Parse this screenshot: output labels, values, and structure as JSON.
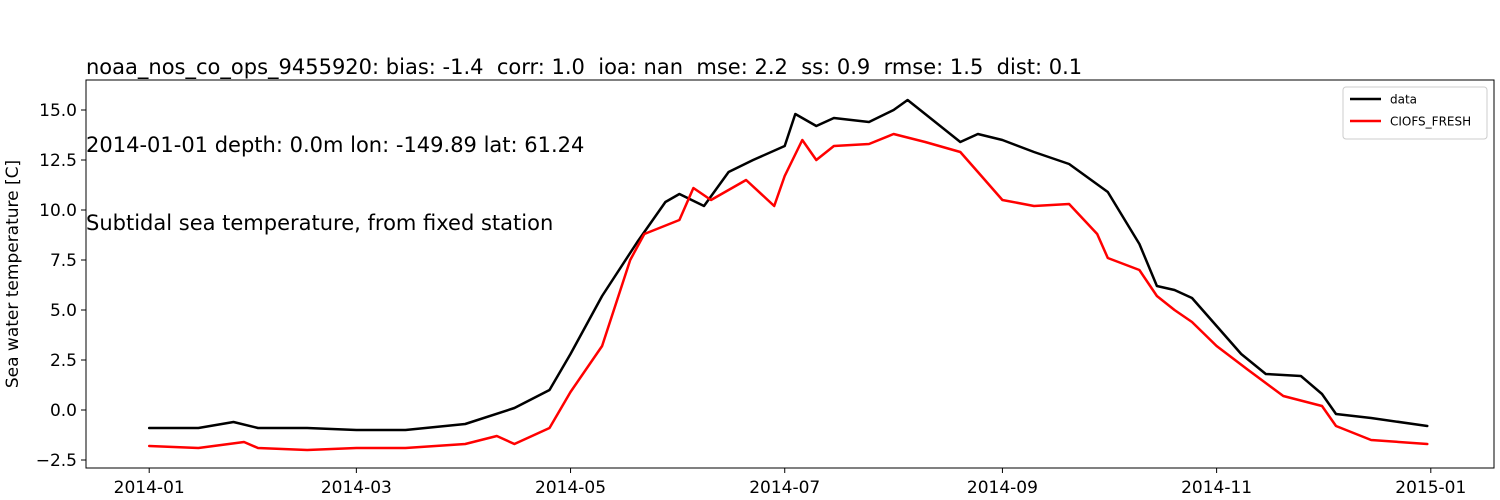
{
  "chart_data": {
    "type": "line",
    "title_lines": [
      "noaa_nos_co_ops_9455920: bias: -1.4  corr: 1.0  ioa: nan  mse: 2.2  ss: 0.9  rmse: 1.5  dist: 0.1",
      "2014-01-01 depth: 0.0m lon: -149.89 lat: 61.24",
      "Subtidal sea temperature, from fixed station"
    ],
    "xlabel": "",
    "ylabel": "Sea water temperature [C]",
    "xlim": [
      "2013-12-14",
      "2015-01-19"
    ],
    "ylim": [
      -2.9,
      16.5
    ],
    "x_ticks": [
      "2014-01",
      "2014-03",
      "2014-05",
      "2014-07",
      "2014-09",
      "2014-11",
      "2015-01"
    ],
    "y_ticks": [
      "−2.5",
      "0.0",
      "2.5",
      "5.0",
      "7.5",
      "10.0",
      "12.5",
      "15.0"
    ],
    "grid": false,
    "legend_position": "top-right",
    "series": [
      {
        "name": "data",
        "color": "#000000",
        "x": [
          "2014-01-01",
          "2014-01-15",
          "2014-01-25",
          "2014-02-01",
          "2014-02-15",
          "2014-03-01",
          "2014-03-15",
          "2014-04-01",
          "2014-04-15",
          "2014-04-25",
          "2014-05-01",
          "2014-05-10",
          "2014-05-20",
          "2014-05-28",
          "2014-06-01",
          "2014-06-08",
          "2014-06-15",
          "2014-06-22",
          "2014-07-01",
          "2014-07-04",
          "2014-07-10",
          "2014-07-15",
          "2014-07-25",
          "2014-08-01",
          "2014-08-05",
          "2014-08-10",
          "2014-08-20",
          "2014-08-25",
          "2014-09-01",
          "2014-09-10",
          "2014-09-20",
          "2014-10-01",
          "2014-10-10",
          "2014-10-15",
          "2014-10-20",
          "2014-10-25",
          "2014-11-01",
          "2014-11-08",
          "2014-11-15",
          "2014-11-25",
          "2014-12-01",
          "2014-12-05",
          "2014-12-15",
          "2014-12-31"
        ],
        "y": [
          -0.9,
          -0.9,
          -0.6,
          -0.9,
          -0.9,
          -1.0,
          -1.0,
          -0.7,
          0.1,
          1.0,
          2.8,
          5.7,
          8.4,
          10.4,
          10.8,
          10.2,
          11.9,
          12.5,
          13.2,
          14.8,
          14.2,
          14.6,
          14.4,
          15.0,
          15.5,
          14.8,
          13.4,
          13.8,
          13.5,
          12.9,
          12.3,
          10.9,
          8.3,
          6.2,
          6.0,
          5.6,
          4.2,
          2.8,
          1.8,
          1.7,
          0.8,
          -0.2,
          -0.4,
          -0.8
        ]
      },
      {
        "name": "CIOFS_FRESH",
        "color": "#ff0000",
        "x": [
          "2014-01-01",
          "2014-01-15",
          "2014-01-28",
          "2014-02-01",
          "2014-02-15",
          "2014-03-01",
          "2014-03-15",
          "2014-04-01",
          "2014-04-10",
          "2014-04-15",
          "2014-04-25",
          "2014-05-01",
          "2014-05-10",
          "2014-05-18",
          "2014-05-22",
          "2014-06-01",
          "2014-06-05",
          "2014-06-10",
          "2014-06-20",
          "2014-06-28",
          "2014-07-01",
          "2014-07-06",
          "2014-07-10",
          "2014-07-15",
          "2014-07-25",
          "2014-08-01",
          "2014-08-10",
          "2014-08-20",
          "2014-08-25",
          "2014-09-01",
          "2014-09-10",
          "2014-09-20",
          "2014-09-28",
          "2014-10-01",
          "2014-10-10",
          "2014-10-15",
          "2014-10-20",
          "2014-10-25",
          "2014-11-01",
          "2014-11-10",
          "2014-11-20",
          "2014-12-01",
          "2014-12-05",
          "2014-12-15",
          "2014-12-31"
        ],
        "y": [
          -1.8,
          -1.9,
          -1.6,
          -1.9,
          -2.0,
          -1.9,
          -1.9,
          -1.7,
          -1.3,
          -1.7,
          -0.9,
          0.9,
          3.2,
          7.5,
          8.8,
          9.5,
          11.1,
          10.5,
          11.5,
          10.2,
          11.7,
          13.5,
          12.5,
          13.2,
          13.3,
          13.8,
          13.4,
          12.9,
          11.9,
          10.5,
          10.2,
          10.3,
          8.8,
          7.6,
          7.0,
          5.7,
          5.0,
          4.4,
          3.2,
          2.0,
          0.7,
          0.2,
          -0.8,
          -1.5,
          -1.7
        ]
      }
    ]
  }
}
